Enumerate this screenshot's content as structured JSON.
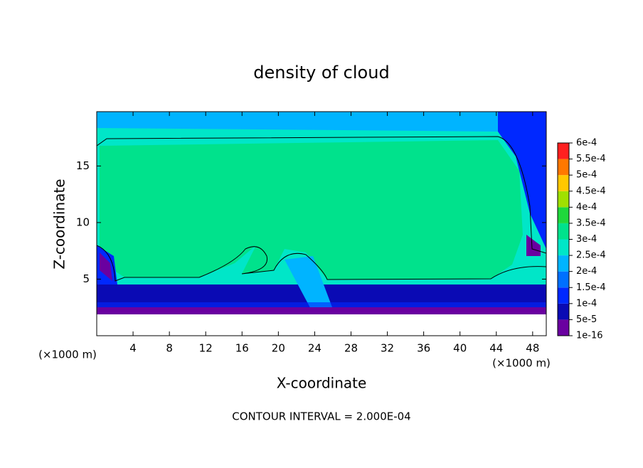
{
  "chart_data": {
    "type": "contour",
    "title": "density of cloud",
    "x_label": "X-coordinate",
    "y_label": "Z-coordinate",
    "x_unit": "(×1000 m)",
    "y_unit": "(×1000 m)",
    "contour_interval_label": "CONTOUR INTERVAL = 2.000E-04",
    "xlim": [
      0,
      49.5
    ],
    "ylim": [
      0,
      19.8
    ],
    "xticks": [
      4,
      8,
      12,
      16,
      20,
      24,
      28,
      32,
      36,
      40,
      44,
      48
    ],
    "yticks": [
      5,
      10,
      15
    ],
    "colorbar_ticks": [
      {
        "value": 1e-16,
        "label": "1e-16"
      },
      {
        "value": 5e-05,
        "label": "5e-5"
      },
      {
        "value": 0.0001,
        "label": "1e-4"
      },
      {
        "value": 0.00015,
        "label": "1.5e-4"
      },
      {
        "value": 0.0002,
        "label": "2e-4"
      },
      {
        "value": 0.00025,
        "label": "2.5e-4"
      },
      {
        "value": 0.0003,
        "label": "3e-4"
      },
      {
        "value": 0.00035,
        "label": "3.5e-4"
      },
      {
        "value": 0.0004,
        "label": "4e-4"
      },
      {
        "value": 0.00045,
        "label": "4.5e-4"
      },
      {
        "value": 0.0005,
        "label": "5e-4"
      },
      {
        "value": 0.00055,
        "label": "5.5e-4"
      },
      {
        "value": 0.0006,
        "label": "6e-4"
      }
    ],
    "colorbar_colors": [
      "#6a00a0",
      "#0a0ab4",
      "#0028ff",
      "#0070ff",
      "#00b4ff",
      "#00e6c8",
      "#00e28c",
      "#20d83c",
      "#a0e000",
      "#ffc800",
      "#ff7800",
      "#ff2020"
    ]
  }
}
